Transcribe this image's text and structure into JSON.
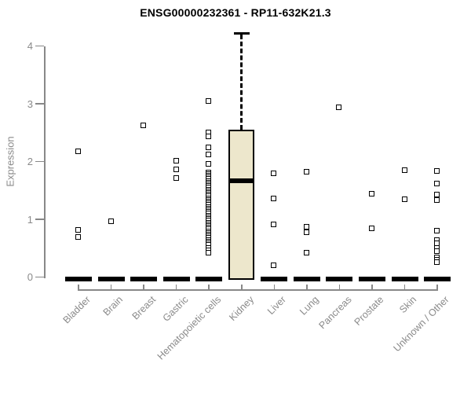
{
  "chart_data": {
    "type": "boxplot",
    "title": "ENSG00000232361 - RP11-632K21.3",
    "ylabel": "Expression",
    "xlabel": "",
    "ylim": [
      0,
      4.35
    ],
    "yticks": [
      0,
      1,
      2,
      3,
      4
    ],
    "grid": false,
    "legend": false,
    "categories": [
      "Bladder",
      "Brain",
      "Breast",
      "Gastric",
      "Hematopoietic cells",
      "Kidney",
      "Liver",
      "Lung",
      "Pancreas",
      "Prostate",
      "Skin",
      "Unknown / Other"
    ],
    "boxes": [
      {
        "category": "Bladder",
        "lo": 0,
        "q1": 0,
        "median": 0,
        "q3": 0,
        "hi": 0
      },
      {
        "category": "Brain",
        "lo": 0,
        "q1": 0,
        "median": 0,
        "q3": 0,
        "hi": 0
      },
      {
        "category": "Breast",
        "lo": 0,
        "q1": 0,
        "median": 0,
        "q3": 0,
        "hi": 0
      },
      {
        "category": "Gastric",
        "lo": 0,
        "q1": 0,
        "median": 0,
        "q3": 0,
        "hi": 0
      },
      {
        "category": "Hematopoietic cells",
        "lo": 0,
        "q1": 0,
        "median": 0,
        "q3": 0,
        "hi": 0
      },
      {
        "category": "Kidney",
        "lo": 0,
        "q1": 0,
        "median": 1.67,
        "q3": 2.55,
        "hi": 4.22
      },
      {
        "category": "Liver",
        "lo": 0,
        "q1": 0,
        "median": 0,
        "q3": 0,
        "hi": 0
      },
      {
        "category": "Lung",
        "lo": 0,
        "q1": 0,
        "median": 0,
        "q3": 0,
        "hi": 0
      },
      {
        "category": "Pancreas",
        "lo": 0,
        "q1": 0,
        "median": 0,
        "q3": 0,
        "hi": 0
      },
      {
        "category": "Prostate",
        "lo": 0,
        "q1": 0,
        "median": 0,
        "q3": 0,
        "hi": 0
      },
      {
        "category": "Skin",
        "lo": 0,
        "q1": 0,
        "median": 0,
        "q3": 0,
        "hi": 0
      },
      {
        "category": "Unknown / Other",
        "lo": 0,
        "q1": 0,
        "median": 0,
        "q3": 0,
        "hi": 0
      }
    ],
    "points": [
      {
        "category": "Bladder",
        "values": [
          2.17,
          0.81,
          0.69
        ]
      },
      {
        "category": "Brain",
        "values": [
          0.96
        ]
      },
      {
        "category": "Breast",
        "values": [
          2.62
        ]
      },
      {
        "category": "Gastric",
        "values": [
          2.01,
          1.86,
          1.71
        ]
      },
      {
        "category": "Hematopoietic cells",
        "values": [
          3.04,
          2.5,
          2.43,
          2.24,
          2.12,
          1.95,
          1.81,
          1.78,
          1.75,
          1.72,
          1.69,
          1.66,
          1.63,
          1.6,
          1.57,
          1.54,
          1.51,
          1.48,
          1.45,
          1.42,
          1.39,
          1.36,
          1.33,
          1.3,
          1.27,
          1.24,
          1.21,
          1.18,
          1.15,
          1.12,
          1.09,
          1.06,
          1.03,
          1.0,
          0.97,
          0.94,
          0.91,
          0.88,
          0.85,
          0.82,
          0.79,
          0.76,
          0.73,
          0.7,
          0.67,
          0.64,
          0.61,
          0.58,
          0.55,
          0.5,
          0.46,
          0.42
        ]
      },
      {
        "category": "Kidney",
        "values": []
      },
      {
        "category": "Liver",
        "values": [
          1.79,
          1.35,
          0.9,
          0.2
        ]
      },
      {
        "category": "Lung",
        "values": [
          1.82,
          0.86,
          0.77,
          0.42
        ]
      },
      {
        "category": "Pancreas",
        "values": [
          2.93
        ]
      },
      {
        "category": "Prostate",
        "values": [
          1.44,
          0.84
        ]
      },
      {
        "category": "Skin",
        "values": [
          1.85,
          1.34
        ]
      },
      {
        "category": "Unknown / Other",
        "values": [
          1.83,
          1.61,
          1.42,
          1.33,
          0.8,
          0.64,
          0.58,
          0.5,
          0.45,
          0.34,
          0.29,
          0.25
        ]
      }
    ],
    "colors": {
      "box_fill": "#EDE7CC",
      "box_border": "#000000",
      "median": "#000000",
      "marker_fill": "#ffffff",
      "marker_border": "#000000",
      "axis": "#888888",
      "tick_label": "#8a8a8a",
      "title": "#000000",
      "background": "#ffffff"
    }
  }
}
